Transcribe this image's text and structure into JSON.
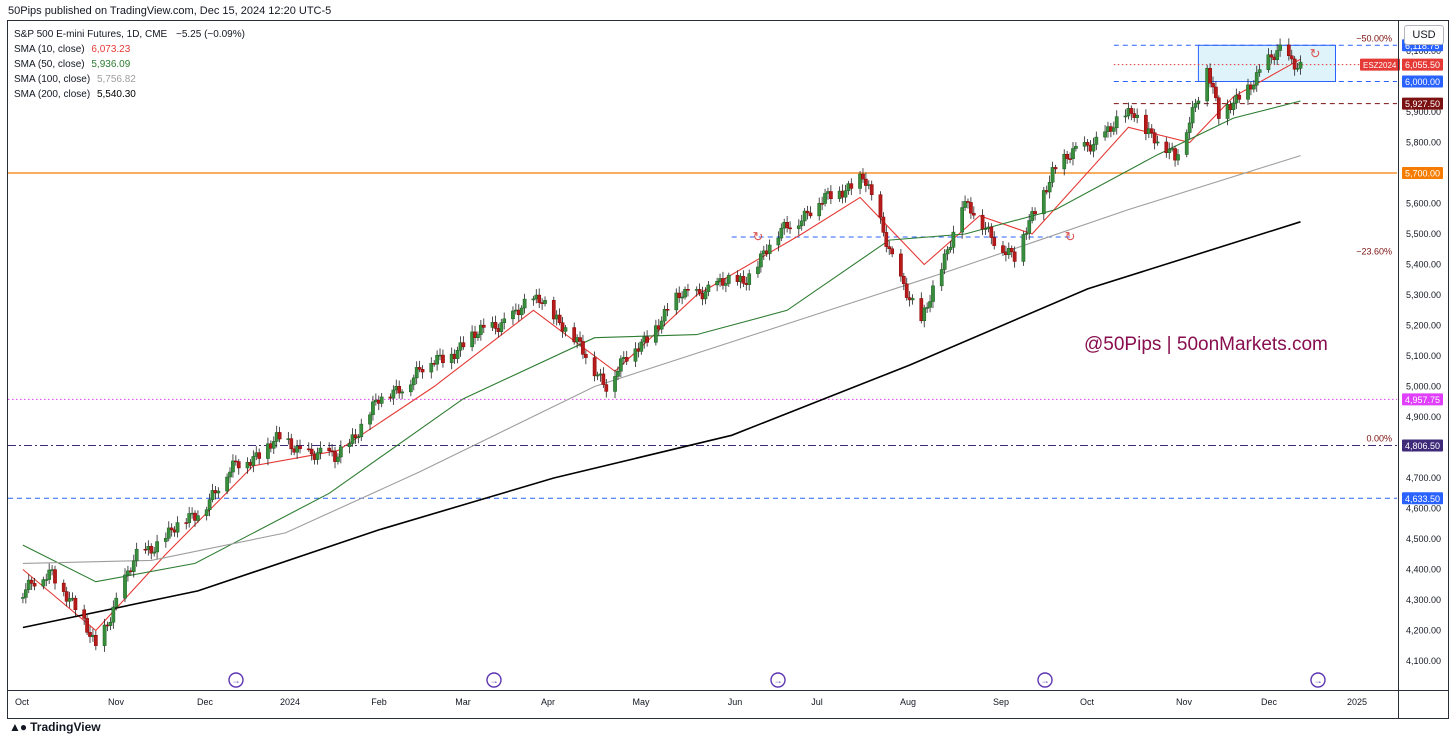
{
  "header": {
    "published": "50Pips published on TradingView.com, Dec 15, 2024 12:20 UTC-5"
  },
  "legend": {
    "symbol": "S&P 500 E-mini Futures, 1D, CME",
    "change": "−5.25 (−0.09%)",
    "smas": [
      {
        "label": "SMA (10, close)",
        "value": "6,073.23",
        "color": "#e53935"
      },
      {
        "label": "SMA (50, close)",
        "value": "5,936.09",
        "color": "#2e7d32"
      },
      {
        "label": "SMA (100, close)",
        "value": "5,756.82",
        "color": "#9e9e9e"
      },
      {
        "label": "SMA (200, close)",
        "value": "5,540.30",
        "color": "#000000"
      }
    ]
  },
  "currency": "USD",
  "watermark": "@50Pips | 50onMarkets.com",
  "footer": {
    "brand": "TradingView"
  },
  "chart_data": {
    "type": "candlestick",
    "title": "S&P 500 E-mini Futures, 1D, CME",
    "ylim": [
      4040,
      6190
    ],
    "x_ticks": [
      "Oct",
      "Nov",
      "Dec",
      "2024",
      "Feb",
      "Mar",
      "Apr",
      "May",
      "Jun",
      "Jul",
      "Aug",
      "Sep",
      "Oct",
      "Nov",
      "Dec",
      "2025"
    ],
    "y_ticks": [
      "4,100.00",
      "4,200.00",
      "4,300.00",
      "4,400.00",
      "4,500.00",
      "4,600.00",
      "4,700.00",
      "4,800.00",
      "4,900.00",
      "5,000.00",
      "5,100.00",
      "5,200.00",
      "5,300.00",
      "5,400.00",
      "5,500.00",
      "5,600.00",
      "5,700.00",
      "5,800.00",
      "5,900.00",
      "6,000.00",
      "6,100.00"
    ],
    "price_close_path": [
      [
        "2023-10-02",
        4320
      ],
      [
        "2023-10-12",
        4400
      ],
      [
        "2023-10-27",
        4150
      ],
      [
        "2023-11-10",
        4440
      ],
      [
        "2023-11-30",
        4580
      ],
      [
        "2023-12-14",
        4740
      ],
      [
        "2023-12-28",
        4820
      ],
      [
        "2024-01-17",
        4760
      ],
      [
        "2024-02-01",
        4950
      ],
      [
        "2024-02-15",
        5050
      ],
      [
        "2024-03-08",
        5180
      ],
      [
        "2024-03-28",
        5290
      ],
      [
        "2024-04-19",
        5010
      ],
      [
        "2024-05-15",
        5300
      ],
      [
        "2024-06-05",
        5350
      ],
      [
        "2024-06-20",
        5530
      ],
      [
        "2024-07-16",
        5690
      ],
      [
        "2024-07-25",
        5450
      ],
      [
        "2024-08-05",
        5200
      ],
      [
        "2024-08-19",
        5600
      ],
      [
        "2024-09-06",
        5420
      ],
      [
        "2024-09-19",
        5710
      ],
      [
        "2024-10-17",
        5900
      ],
      [
        "2024-10-31",
        5740
      ],
      [
        "2024-11-11",
        6050
      ],
      [
        "2024-11-15",
        5880
      ],
      [
        "2024-12-06",
        6100
      ],
      [
        "2024-12-13",
        6055
      ]
    ],
    "series": [
      {
        "name": "SMA (10, close)",
        "color": "#e53935",
        "points": [
          [
            "2023-10-02",
            4400
          ],
          [
            "2023-10-27",
            4200
          ],
          [
            "2023-11-20",
            4450
          ],
          [
            "2023-12-20",
            4740
          ],
          [
            "2024-01-18",
            4790
          ],
          [
            "2024-02-20",
            5000
          ],
          [
            "2024-03-25",
            5250
          ],
          [
            "2024-04-22",
            5050
          ],
          [
            "2024-05-20",
            5300
          ],
          [
            "2024-06-25",
            5500
          ],
          [
            "2024-07-15",
            5620
          ],
          [
            "2024-08-06",
            5400
          ],
          [
            "2024-08-25",
            5560
          ],
          [
            "2024-09-12",
            5500
          ],
          [
            "2024-10-15",
            5850
          ],
          [
            "2024-11-05",
            5800
          ],
          [
            "2024-11-20",
            5950
          ],
          [
            "2024-12-13",
            6073
          ]
        ]
      },
      {
        "name": "SMA (50, close)",
        "color": "#2e7d32",
        "points": [
          [
            "2023-10-02",
            4480
          ],
          [
            "2023-10-27",
            4360
          ],
          [
            "2023-11-30",
            4420
          ],
          [
            "2024-01-15",
            4650
          ],
          [
            "2024-03-01",
            4960
          ],
          [
            "2024-04-15",
            5160
          ],
          [
            "2024-05-20",
            5170
          ],
          [
            "2024-06-20",
            5250
          ],
          [
            "2024-07-25",
            5480
          ],
          [
            "2024-08-20",
            5500
          ],
          [
            "2024-09-20",
            5580
          ],
          [
            "2024-10-25",
            5760
          ],
          [
            "2024-11-20",
            5880
          ],
          [
            "2024-12-13",
            5936
          ]
        ]
      },
      {
        "name": "SMA (100, close)",
        "color": "#9e9e9e",
        "points": [
          [
            "2023-10-02",
            4420
          ],
          [
            "2023-11-15",
            4430
          ],
          [
            "2023-12-31",
            4520
          ],
          [
            "2024-02-15",
            4720
          ],
          [
            "2024-04-15",
            5000
          ],
          [
            "2024-06-15",
            5190
          ],
          [
            "2024-08-15",
            5380
          ],
          [
            "2024-10-15",
            5580
          ],
          [
            "2024-12-13",
            5757
          ]
        ]
      },
      {
        "name": "SMA (200, close)",
        "color": "#000000",
        "points": [
          [
            "2023-10-02",
            4210
          ],
          [
            "2023-12-01",
            4330
          ],
          [
            "2024-02-01",
            4530
          ],
          [
            "2024-04-01",
            4700
          ],
          [
            "2024-06-01",
            4840
          ],
          [
            "2024-08-01",
            5070
          ],
          [
            "2024-10-01",
            5320
          ],
          [
            "2024-12-13",
            5540
          ]
        ]
      }
    ],
    "horizontal_lines": [
      {
        "price": 6118.75,
        "label": "6,118.75",
        "color": "#2962ff",
        "style": "dashed",
        "badge_bg": "#2962ff"
      },
      {
        "price": 6055.5,
        "label": "6,055.50",
        "color": "#e53935",
        "style": "dotted",
        "badge_bg": "#e53935",
        "tag": "ESZ2024"
      },
      {
        "price": 6000.0,
        "label": "6,000.00",
        "color": "#2962ff",
        "style": "dashed",
        "badge_bg": "#2962ff"
      },
      {
        "price": 5927.5,
        "label": "5,927.50",
        "color": "#7b1010",
        "style": "dashed",
        "badge_bg": "#7b1010"
      },
      {
        "price": 5700.0,
        "label": "5,700.00",
        "color": "#f57c00",
        "style": "solid",
        "badge_bg": "#f57c00"
      },
      {
        "price": 4957.75,
        "label": "4,957.75",
        "color": "#e040fb",
        "style": "dotted",
        "badge_bg": "#e040fb"
      },
      {
        "price": 4806.5,
        "label": "4,806.50",
        "color": "#3f2a7a",
        "style": "dashdot",
        "badge_bg": "#3f2a7a"
      },
      {
        "price": 4633.5,
        "label": "4,633.50",
        "color": "#2962ff",
        "style": "dashed",
        "badge_bg": "#2962ff"
      }
    ],
    "fib_labels": [
      {
        "text": "−50.00%",
        "price": 6118.75
      },
      {
        "text": "−23.60%",
        "price": 5420
      },
      {
        "text": "0.00%",
        "price": 4806.5
      }
    ],
    "resistance_box": {
      "from": "2024-11-08",
      "to": "2024-12-25",
      "low": 6000,
      "high": 6118.75,
      "fill": "#dff3fb",
      "stroke": "#2962ff"
    }
  }
}
